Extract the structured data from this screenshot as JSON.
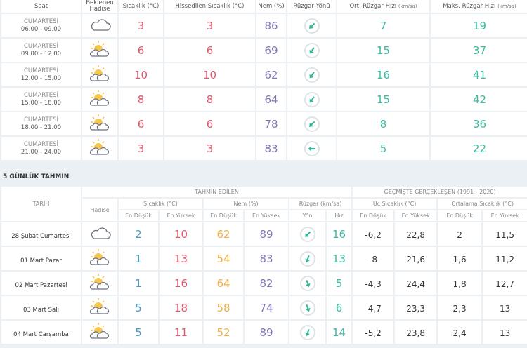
{
  "hourly": {
    "headers": {
      "time": "Saat",
      "event": "Beklenen Hadise",
      "temp": "Sıcaklık (°C)",
      "feels": "Hissedilen Sıcaklık (°C)",
      "humidity": "Nem (%)",
      "wind_dir": "Rüzgar Yönü",
      "avg_wind": "Ort. Rüzgar Hızı",
      "avg_wind_unit": "(km/sa)",
      "max_wind": "Maks. Rüzgar Hızı",
      "max_wind_unit": "(km/sa)"
    },
    "rows": [
      {
        "day": "CUMARTESİ",
        "time": "06.00 - 09.00",
        "icon": "cloudy-icon",
        "temp": "3",
        "feels": "3",
        "humidity": "86",
        "wind_dir_deg": 225,
        "avg_wind": "7",
        "max_wind": "19"
      },
      {
        "day": "CUMARTESİ",
        "time": "09.00 - 12.00",
        "icon": "partly-cloudy-icon",
        "temp": "6",
        "feels": "6",
        "humidity": "69",
        "wind_dir_deg": 215,
        "avg_wind": "15",
        "max_wind": "37"
      },
      {
        "day": "CUMARTESİ",
        "time": "12.00 - 15.00",
        "icon": "partly-cloudy-icon",
        "temp": "10",
        "feels": "10",
        "humidity": "62",
        "wind_dir_deg": 215,
        "avg_wind": "16",
        "max_wind": "41"
      },
      {
        "day": "CUMARTESİ",
        "time": "15.00 - 18.00",
        "icon": "partly-cloudy-icon",
        "temp": "8",
        "feels": "8",
        "humidity": "64",
        "wind_dir_deg": 215,
        "avg_wind": "15",
        "max_wind": "42"
      },
      {
        "day": "CUMARTESİ",
        "time": "18.00 - 21.00",
        "icon": "partly-cloudy-icon",
        "temp": "6",
        "feels": "6",
        "humidity": "78",
        "wind_dir_deg": 225,
        "avg_wind": "8",
        "max_wind": "36"
      },
      {
        "day": "CUMARTESİ",
        "time": "21.00 - 24.00",
        "icon": "partly-cloudy-icon",
        "temp": "3",
        "feels": "3",
        "humidity": "83",
        "wind_dir_deg": 270,
        "avg_wind": "5",
        "max_wind": "22"
      }
    ]
  },
  "daily": {
    "section_title": "5 GÜNLÜK TAHMİN",
    "headers": {
      "date": "TARİH",
      "forecast": "TAHMİN EDİLEN",
      "past": "GEÇMİŞTE GERÇEKLEŞEN (1991 - 2020)",
      "event": "Hadise",
      "temp": "Sıcaklık (°C)",
      "humidity": "Nem (%)",
      "wind": "Rüzgar (km/sa)",
      "extreme": "Uç Sıcaklık (°C)",
      "average": "Ortalama Sıcaklık (°C)",
      "low": "En Düşük",
      "high": "En Yüksek",
      "dir": "Yön",
      "speed": "Hız"
    },
    "rows": [
      {
        "date": "28 Şubat Cumartesi",
        "icon": "cloudy-icon",
        "t_min": "2",
        "t_max": "10",
        "h_min": "62",
        "h_max": "89",
        "wind_dir_deg": 225,
        "wind": "16",
        "ext_min": "-6,2",
        "ext_max": "22,8",
        "avg_min": "2",
        "avg_max": "11,5"
      },
      {
        "date": "01 Mart Pazar",
        "icon": "partly-cloudy-icon",
        "t_min": "1",
        "t_max": "13",
        "h_min": "54",
        "h_max": "83",
        "wind_dir_deg": 200,
        "wind": "13",
        "ext_min": "-8",
        "ext_max": "21,6",
        "avg_min": "1,6",
        "avg_max": "11,2"
      },
      {
        "date": "02 Mart Pazartesi",
        "icon": "partly-cloudy-icon",
        "t_min": "1",
        "t_max": "16",
        "h_min": "64",
        "h_max": "82",
        "wind_dir_deg": 160,
        "wind": "5",
        "ext_min": "-4,3",
        "ext_max": "24,4",
        "avg_min": "1,8",
        "avg_max": "12,7"
      },
      {
        "date": "03 Mart Salı",
        "icon": "partly-cloudy-icon",
        "t_min": "5",
        "t_max": "18",
        "h_min": "58",
        "h_max": "74",
        "wind_dir_deg": 160,
        "wind": "6",
        "ext_min": "-4,7",
        "ext_max": "23,3",
        "avg_min": "2,3",
        "avg_max": "13"
      },
      {
        "date": "04 Mart Çarşamba",
        "icon": "partly-cloudy-icon",
        "t_min": "5",
        "t_max": "11",
        "h_min": "52",
        "h_max": "89",
        "wind_dir_deg": 200,
        "wind": "14",
        "ext_min": "-5,2",
        "ext_max": "23,8",
        "avg_min": "2,4",
        "avg_max": "13"
      }
    ]
  },
  "colors": {
    "red": "#e5566d",
    "purple": "#7f78b5",
    "teal": "#3cbaa2",
    "blue": "#4a9dc0",
    "orange": "#efb042"
  }
}
